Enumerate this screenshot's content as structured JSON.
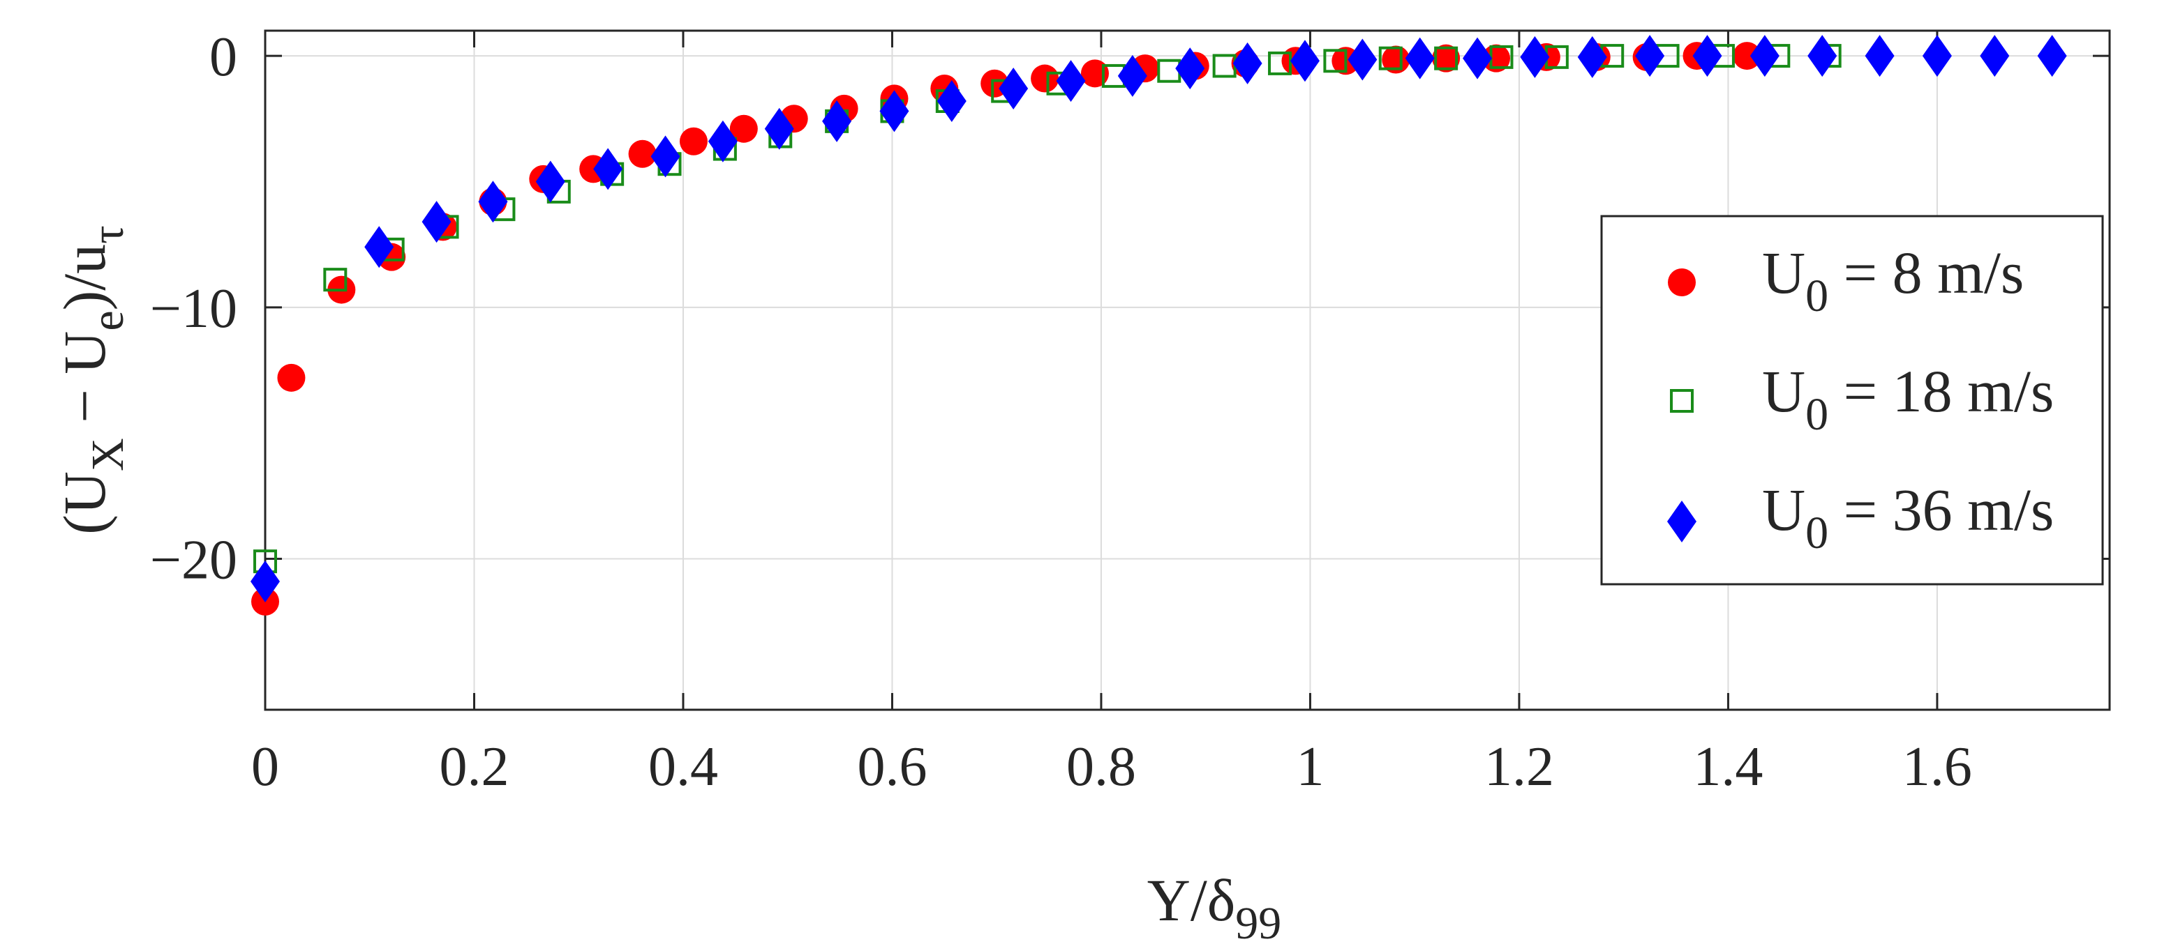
{
  "chart_data": {
    "type": "scatter",
    "title": "",
    "xlabel": {
      "main": "Y/δ",
      "sub": "99"
    },
    "ylabel": {
      "open": "(U",
      "x_sub": "X",
      "minus": " − U",
      "e_sub": "e",
      "close": ")/u",
      "tau_sub": "τ"
    },
    "xlim": [
      0,
      1.765
    ],
    "ylim": [
      -26,
      1
    ],
    "xticks": [
      0,
      0.2,
      0.4,
      0.6,
      0.8,
      1,
      1.2,
      1.4,
      1.6
    ],
    "xtick_labels": [
      "0",
      "0.2",
      "0.4",
      "0.6",
      "0.8",
      "1",
      "1.2",
      "1.4",
      "1.6"
    ],
    "yticks": [
      0,
      -10,
      -20
    ],
    "ytick_labels": [
      "0",
      "−10",
      "−20"
    ],
    "grid": true,
    "legend_position": "right",
    "series": [
      {
        "name": "U0 = 8 m/s",
        "legend": {
          "prefix": "U",
          "sub": "0",
          "suffix": " = 8 m/s"
        },
        "marker": "circle",
        "color": "#ff0000",
        "filled": true,
        "x": [
          0.0,
          0.025,
          0.073,
          0.121,
          0.17,
          0.218,
          0.266,
          0.314,
          0.361,
          0.41,
          0.458,
          0.506,
          0.554,
          0.602,
          0.65,
          0.698,
          0.746,
          0.794,
          0.842,
          0.89,
          0.938,
          0.986,
          1.034,
          1.082,
          1.13,
          1.178,
          1.226,
          1.274,
          1.322,
          1.37,
          1.418
        ],
        "y": [
          -21.7,
          -12.8,
          -9.3,
          -8.0,
          -6.8,
          -5.8,
          -4.9,
          -4.5,
          -3.9,
          -3.4,
          -2.9,
          -2.5,
          -2.1,
          -1.7,
          -1.3,
          -1.1,
          -0.9,
          -0.7,
          -0.5,
          -0.4,
          -0.3,
          -0.2,
          -0.2,
          -0.15,
          -0.1,
          -0.1,
          -0.05,
          -0.05,
          -0.05,
          0,
          0
        ]
      },
      {
        "name": "U0 = 18 m/s",
        "legend": {
          "prefix": "U",
          "sub": "0",
          "suffix": " = 18 m/s"
        },
        "marker": "square",
        "color": "#1a8c1a",
        "filled": false,
        "x": [
          0.0,
          0.067,
          0.122,
          0.174,
          0.228,
          0.281,
          0.332,
          0.387,
          0.44,
          0.493,
          0.547,
          0.6,
          0.653,
          0.706,
          0.759,
          0.812,
          0.865,
          0.918,
          0.971,
          1.024,
          1.077,
          1.13,
          1.183,
          1.236,
          1.289,
          1.342,
          1.395,
          1.448,
          1.497
        ],
        "y": [
          -20.1,
          -8.9,
          -7.7,
          -6.8,
          -6.1,
          -5.4,
          -4.7,
          -4.3,
          -3.7,
          -3.2,
          -2.6,
          -2.2,
          -1.8,
          -1.4,
          -1.1,
          -0.8,
          -0.6,
          -0.4,
          -0.3,
          -0.2,
          -0.1,
          -0.1,
          -0.05,
          -0.05,
          0,
          0,
          0,
          0,
          0
        ]
      },
      {
        "name": "U0 = 36 m/s",
        "legend": {
          "prefix": "U",
          "sub": "0",
          "suffix": " = 36 m/s"
        },
        "marker": "diamond",
        "color": "#0000ff",
        "filled": true,
        "x": [
          0.0,
          0.109,
          0.164,
          0.218,
          0.273,
          0.328,
          0.383,
          0.438,
          0.492,
          0.547,
          0.602,
          0.657,
          0.716,
          0.771,
          0.83,
          0.885,
          0.94,
          0.995,
          1.05,
          1.105,
          1.16,
          1.215,
          1.27,
          1.325,
          1.38,
          1.435,
          1.49,
          1.545,
          1.6,
          1.655,
          1.71
        ],
        "y": [
          -20.9,
          -7.6,
          -6.6,
          -5.8,
          -5.0,
          -4.5,
          -4.0,
          -3.4,
          -2.9,
          -2.6,
          -2.2,
          -1.8,
          -1.3,
          -1.0,
          -0.8,
          -0.5,
          -0.3,
          -0.2,
          -0.15,
          -0.1,
          -0.1,
          -0.05,
          -0.05,
          0,
          0,
          0,
          0,
          0,
          0,
          0,
          0
        ]
      }
    ]
  }
}
